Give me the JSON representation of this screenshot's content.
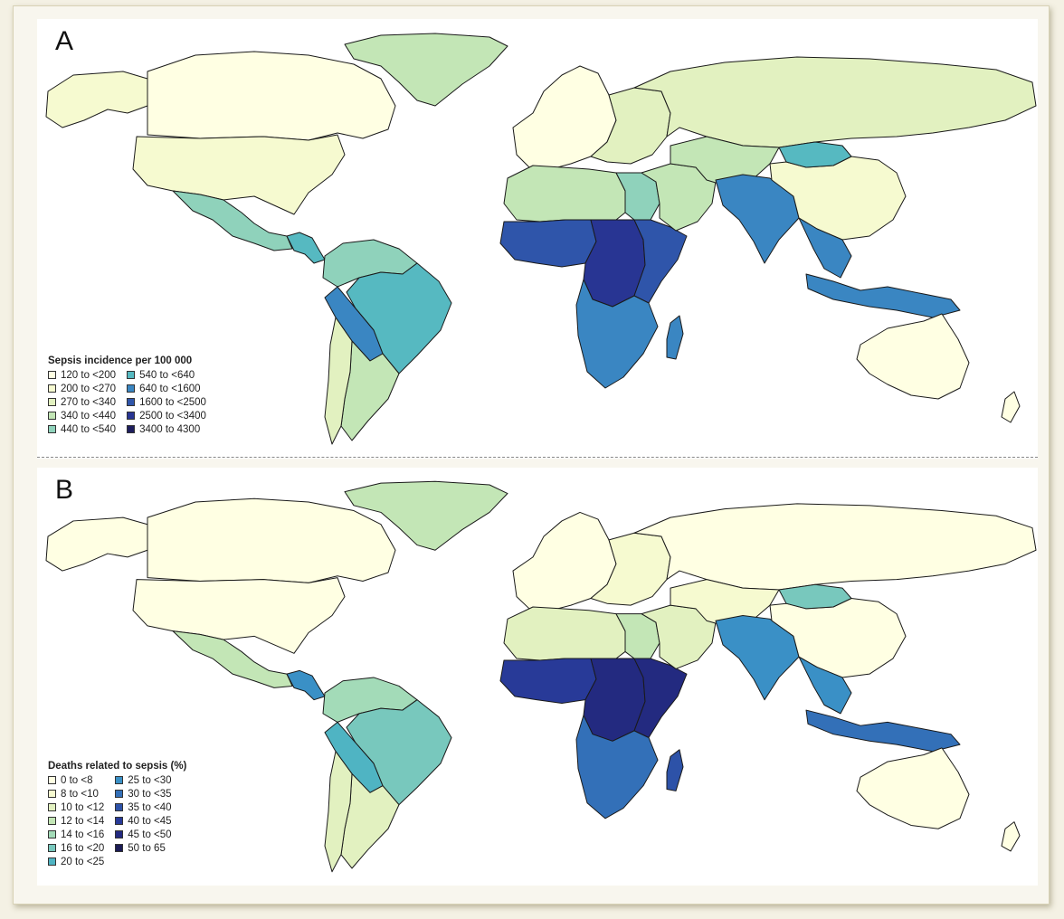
{
  "panel_a": {
    "letter": "A",
    "legend_title": "Sepsis incidence per 100 000",
    "bins": [
      {
        "label": "120 to <200",
        "color": "#ffffe3"
      },
      {
        "label": "200 to <270",
        "color": "#f6fad0"
      },
      {
        "label": "270 to <340",
        "color": "#e2f1c0"
      },
      {
        "label": "340 to <440",
        "color": "#c3e6b6"
      },
      {
        "label": "440 to <540",
        "color": "#8fd2bb"
      },
      {
        "label": "540 to <640",
        "color": "#56b9c1"
      },
      {
        "label": "640 to <1600",
        "color": "#3a86c2"
      },
      {
        "label": "1600 to <2500",
        "color": "#2f55aa"
      },
      {
        "label": "2500 to <3400",
        "color": "#283593"
      },
      {
        "label": "3400 to 4300",
        "color": "#1e1e5e"
      }
    ]
  },
  "panel_b": {
    "letter": "B",
    "legend_title": "Deaths related to sepsis (%)",
    "bins": [
      {
        "label": "0 to <8",
        "color": "#ffffe3"
      },
      {
        "label": "8 to <10",
        "color": "#f6fad0"
      },
      {
        "label": "10 to <12",
        "color": "#e2f1c0"
      },
      {
        "label": "12 to <14",
        "color": "#c3e6b6"
      },
      {
        "label": "14 to <16",
        "color": "#a3dbb8"
      },
      {
        "label": "16 to <20",
        "color": "#78c8bd"
      },
      {
        "label": "20 to <25",
        "color": "#4fb4c3"
      },
      {
        "label": "25 to <30",
        "color": "#3a90c6"
      },
      {
        "label": "30 to <35",
        "color": "#3370b8"
      },
      {
        "label": "35 to <40",
        "color": "#2d52a8"
      },
      {
        "label": "40 to <45",
        "color": "#283a98"
      },
      {
        "label": "45 to <50",
        "color": "#232a80"
      },
      {
        "label": "50 to 65",
        "color": "#1c1c55"
      }
    ]
  },
  "map_regions": [
    {
      "region": "canada",
      "a": 0,
      "b": 0
    },
    {
      "region": "alaska",
      "a": 1,
      "b": 0
    },
    {
      "region": "greenland",
      "a": 3,
      "b": 3
    },
    {
      "region": "usa",
      "a": 1,
      "b": 0
    },
    {
      "region": "mexico",
      "a": 4,
      "b": 3
    },
    {
      "region": "central-america",
      "a": 5,
      "b": 7
    },
    {
      "region": "south-america-north",
      "a": 4,
      "b": 4
    },
    {
      "region": "brazil",
      "a": 5,
      "b": 5
    },
    {
      "region": "bolivia",
      "a": 6,
      "b": 6
    },
    {
      "region": "argentina",
      "a": 3,
      "b": 2
    },
    {
      "region": "chile",
      "a": 2,
      "b": 2
    },
    {
      "region": "europe-west",
      "a": 0,
      "b": 0
    },
    {
      "region": "europe-east",
      "a": 2,
      "b": 1
    },
    {
      "region": "russia",
      "a": 2,
      "b": 0
    },
    {
      "region": "north-africa",
      "a": 3,
      "b": 2
    },
    {
      "region": "egypt",
      "a": 4,
      "b": 3
    },
    {
      "region": "west-africa",
      "a": 7,
      "b": 10
    },
    {
      "region": "central-africa",
      "a": 8,
      "b": 11
    },
    {
      "region": "east-africa",
      "a": 7,
      "b": 11
    },
    {
      "region": "southern-africa",
      "a": 6,
      "b": 8
    },
    {
      "region": "madagascar",
      "a": 6,
      "b": 9
    },
    {
      "region": "middle-east",
      "a": 3,
      "b": 2
    },
    {
      "region": "central-asia",
      "a": 3,
      "b": 1
    },
    {
      "region": "south-asia",
      "a": 6,
      "b": 7
    },
    {
      "region": "china",
      "a": 1,
      "b": 0
    },
    {
      "region": "mongolia",
      "a": 5,
      "b": 5
    },
    {
      "region": "southeast-asia",
      "a": 6,
      "b": 7
    },
    {
      "region": "indonesia",
      "a": 6,
      "b": 8
    },
    {
      "region": "australia",
      "a": 0,
      "b": 0
    },
    {
      "region": "new-zealand",
      "a": 0,
      "b": 0
    }
  ]
}
